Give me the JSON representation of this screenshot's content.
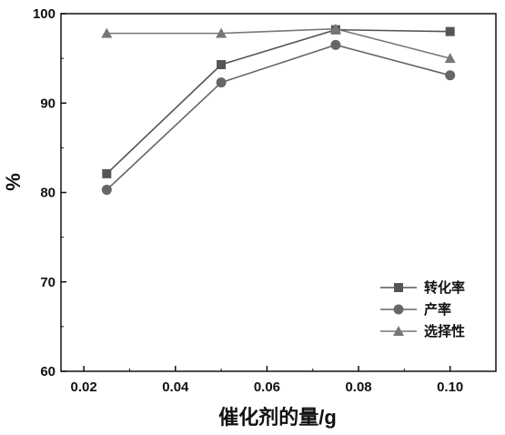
{
  "chart_data": {
    "type": "line",
    "title": "",
    "xlabel": "催化剂的量/g",
    "ylabel": "%",
    "xlim": [
      0.015,
      0.11
    ],
    "ylim": [
      60,
      100
    ],
    "xticks": [
      "0.02",
      "0.04",
      "0.06",
      "0.08",
      "0.10"
    ],
    "yticks": [
      "60",
      "70",
      "80",
      "90",
      "100"
    ],
    "x": [
      0.025,
      0.05,
      0.075,
      0.1
    ],
    "grid": false,
    "legend_position": "bottom-right",
    "series": [
      {
        "name": "转化率",
        "marker": "square",
        "color": "#555555",
        "values": [
          82.1,
          94.3,
          98.2,
          98.0
        ]
      },
      {
        "name": "产率",
        "marker": "circle",
        "color": "#666666",
        "values": [
          80.3,
          92.3,
          96.5,
          93.1
        ]
      },
      {
        "name": "选择性",
        "marker": "triangle",
        "color": "#777777",
        "values": [
          97.8,
          97.8,
          98.3,
          95.0
        ]
      }
    ]
  }
}
